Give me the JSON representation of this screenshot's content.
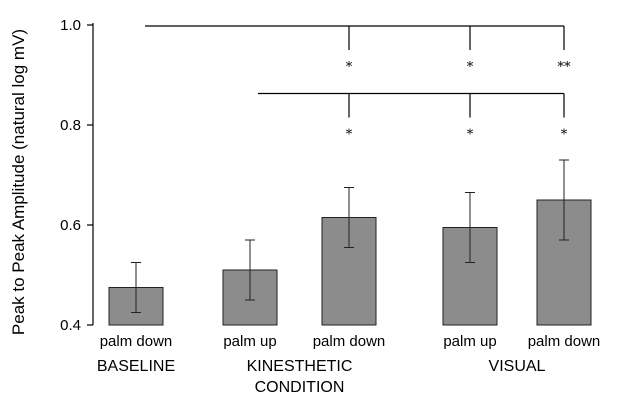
{
  "chart_data": {
    "type": "bar",
    "ylabel": "Peak to Peak Amplitude (natural log mV)",
    "ylim": [
      0.4,
      1.0
    ],
    "yticks": [
      "0.4",
      "0.6",
      "0.8",
      "1.0"
    ],
    "categories": [
      "palm down",
      "palm up",
      "palm down",
      "palm up",
      "palm down"
    ],
    "groups": [
      {
        "label": "BASELINE",
        "indices": [
          0
        ]
      },
      {
        "label": "KINESTHETIC\nCONDITION",
        "indices": [
          1,
          2
        ]
      },
      {
        "label": "VISUAL",
        "indices": [
          3,
          4
        ]
      }
    ],
    "values": [
      0.475,
      0.51,
      0.615,
      0.595,
      0.65
    ],
    "errors": [
      0.05,
      0.06,
      0.06,
      0.07,
      0.08
    ],
    "significance": [
      {
        "from": 0,
        "to": [
          2,
          3,
          4
        ],
        "level": 1.0,
        "marks": [
          "*",
          "*",
          "**"
        ]
      },
      {
        "from": 1,
        "to": [
          2,
          3,
          4
        ],
        "level": 0.865,
        "marks": [
          "*",
          "*",
          "*"
        ]
      }
    ],
    "grid": false,
    "legend": "none"
  }
}
